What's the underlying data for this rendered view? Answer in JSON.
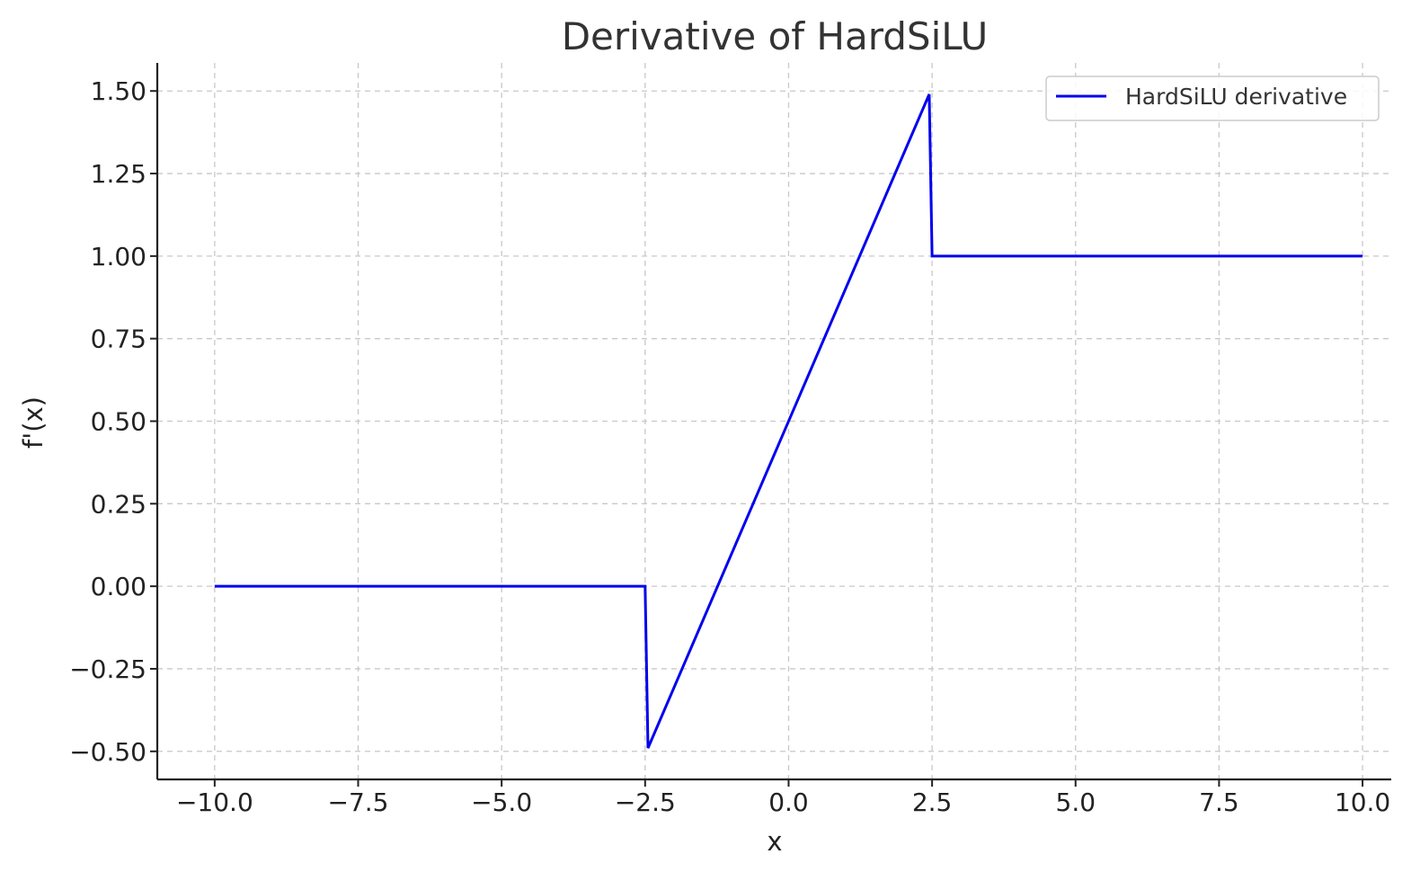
{
  "chart_data": {
    "type": "line",
    "title": "Derivative of HardSiLU",
    "xlabel": "x",
    "ylabel": "f'(x)",
    "xlim": [
      -11.0,
      10.5
    ],
    "ylim": [
      -0.585,
      1.585
    ],
    "xticks": [
      -10.0,
      -7.5,
      -5.0,
      -2.5,
      0.0,
      2.5,
      5.0,
      7.5,
      10.0
    ],
    "xtick_labels": [
      "−10.0",
      "−7.5",
      "−5.0",
      "−2.5",
      "0.0",
      "2.5",
      "5.0",
      "7.5",
      "10.0"
    ],
    "yticks": [
      -0.5,
      -0.25,
      0.0,
      0.25,
      0.5,
      0.75,
      1.0,
      1.25,
      1.5
    ],
    "ytick_labels": [
      "−0.50",
      "−0.25",
      "0.00",
      "0.25",
      "0.50",
      "0.75",
      "1.00",
      "1.25",
      "1.50"
    ],
    "grid": true,
    "legend_position": "top-right",
    "series": [
      {
        "name": "HardSiLU derivative",
        "color": "#0000ee",
        "x": [
          -10.0,
          -2.5,
          -2.45,
          2.45,
          2.5,
          10.0
        ],
        "y": [
          0.0,
          0.0,
          -0.49,
          1.49,
          1.0,
          1.0
        ]
      }
    ]
  }
}
